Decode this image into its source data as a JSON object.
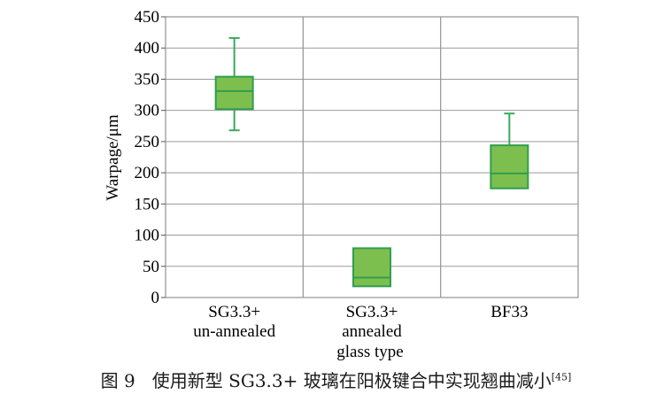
{
  "chart_data": {
    "type": "box",
    "ylabel": "Warpage/μm",
    "xlabel": "glass type",
    "ylim": [
      0,
      450
    ],
    "yticks": [
      "0",
      "50",
      "100",
      "150",
      "200",
      "250",
      "300",
      "350",
      "400",
      "450"
    ],
    "grid": true,
    "categories": [
      {
        "lines": [
          "SG3.3+",
          "un-annealed"
        ]
      },
      {
        "lines": [
          "SG3.3+",
          "annealed"
        ]
      },
      {
        "lines": [
          "BF33"
        ]
      }
    ],
    "boxes": [
      {
        "min": 268,
        "q1": 302,
        "median": 331,
        "q3": 354,
        "max": 416
      },
      {
        "min": 18,
        "q1": 18,
        "median": 32,
        "q3": 79,
        "max": 79
      },
      {
        "min": 175,
        "q1": 175,
        "median": 199,
        "q3": 244,
        "max": 295
      }
    ],
    "colors": {
      "box_fill": "#7dbf4e",
      "box_stroke": "#2f9e4f",
      "whisker": "#3aaa5e",
      "grid": "#9a9a9a",
      "axis": "#555555"
    }
  },
  "caption": {
    "prefix": "图 9",
    "text": "使用新型 SG3.3+ 玻璃在阳极键合中实现翘曲减小",
    "ref": "[45]"
  }
}
